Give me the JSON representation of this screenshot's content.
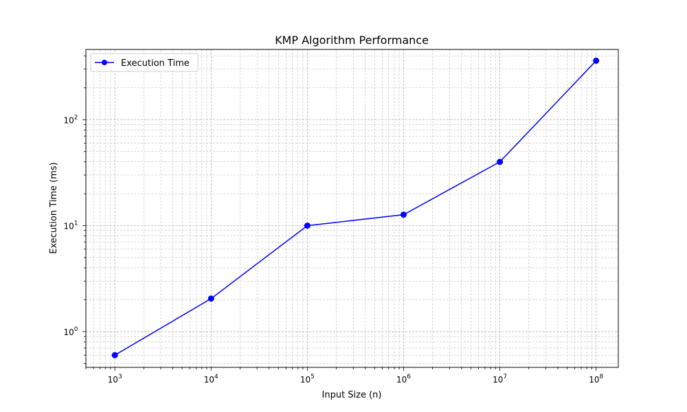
{
  "chart_data": {
    "type": "line",
    "title": "KMP Algorithm Performance",
    "xlabel": "Input Size (n)",
    "ylabel": "Execution Time (ms)",
    "x_scale": "log",
    "y_scale": "log",
    "xlim": [
      500,
      170000000
    ],
    "ylim": [
      0.46,
      460
    ],
    "grid": true,
    "legend_position": "top-left",
    "x_ticks": [
      {
        "value": 1000,
        "base": "10",
        "exp": "3"
      },
      {
        "value": 10000,
        "base": "10",
        "exp": "4"
      },
      {
        "value": 100000,
        "base": "10",
        "exp": "5"
      },
      {
        "value": 1000000,
        "base": "10",
        "exp": "6"
      },
      {
        "value": 10000000,
        "base": "10",
        "exp": "7"
      },
      {
        "value": 100000000,
        "base": "10",
        "exp": "8"
      }
    ],
    "y_ticks": [
      {
        "value": 1,
        "base": "10",
        "exp": "0"
      },
      {
        "value": 10,
        "base": "10",
        "exp": "1"
      },
      {
        "value": 100,
        "base": "10",
        "exp": "2"
      }
    ],
    "series": [
      {
        "name": "Execution Time",
        "color": "#0000ff",
        "marker": "circle",
        "x": [
          1000,
          10000,
          100000,
          1000000,
          10000000,
          100000000
        ],
        "y": [
          0.6,
          2.05,
          10.0,
          12.7,
          40.0,
          360.0
        ]
      }
    ]
  }
}
